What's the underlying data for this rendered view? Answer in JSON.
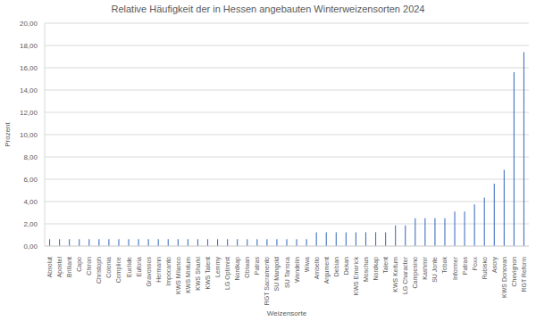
{
  "chart_data": {
    "type": "bar",
    "title": "Relative Häufigkeit der in Hessen angebauten Winterweizensorten 2024",
    "x_label": "Weizensorte",
    "y_label": "Prozent",
    "categories": [
      "Absolut",
      "Apostel",
      "Brilliant",
      "Capo",
      "Chiron",
      "Christoph",
      "Colonia",
      "Complice",
      "Euclide",
      "Euforia",
      "Gravossos",
      "Hermann",
      "Impocanto",
      "KWS Milanco",
      "KWS Mintum",
      "KWS Sharki",
      "KWS Talent",
      "Lemmy",
      "LG Optimist",
      "Nordkap",
      "Obiwan",
      "Patras",
      "RGT Sacramento",
      "SU Mangold",
      "SU Tarroca",
      "Wendelin",
      "Wiwa",
      "Ambello",
      "Argument",
      "Debian",
      "Dekan",
      "KWS Emerick",
      "Moschus",
      "Nordkap",
      "Talent",
      "KWS Keitum",
      "LG Character",
      "Campesino",
      "Kashmir",
      "SU Jonte",
      "Tobak",
      "Informer",
      "Patras",
      "Foxx",
      "Rubisko",
      "Asory",
      "KWS Donovan",
      "Chevignon",
      "RGT Reform"
    ],
    "values": [
      0.62,
      0.62,
      0.62,
      0.62,
      0.62,
      0.62,
      0.62,
      0.62,
      0.62,
      0.62,
      0.62,
      0.62,
      0.62,
      0.62,
      0.62,
      0.62,
      0.62,
      0.62,
      0.62,
      0.62,
      0.62,
      0.62,
      0.62,
      0.62,
      0.62,
      0.62,
      0.62,
      1.25,
      1.25,
      1.25,
      1.25,
      1.25,
      1.25,
      1.25,
      1.25,
      1.87,
      1.87,
      2.5,
      2.5,
      2.5,
      2.5,
      3.1,
      3.1,
      3.75,
      4.37,
      5.6,
      6.85,
      15.6,
      17.4
    ],
    "color": "#4472c4",
    "ylim": [
      0,
      20
    ],
    "yticks": [
      {
        "value": 0,
        "label": "0,00"
      },
      {
        "value": 2,
        "label": "2,00"
      },
      {
        "value": 4,
        "label": "4,00"
      },
      {
        "value": 6,
        "label": "6,00"
      },
      {
        "value": 8,
        "label": "8,00"
      },
      {
        "value": 10,
        "label": "10,00"
      },
      {
        "value": 12,
        "label": "12,00"
      },
      {
        "value": 14,
        "label": "14,00"
      },
      {
        "value": 16,
        "label": "16,00"
      },
      {
        "value": 18,
        "label": "18,00"
      },
      {
        "value": 20,
        "label": "20,00"
      }
    ],
    "grid": true
  }
}
